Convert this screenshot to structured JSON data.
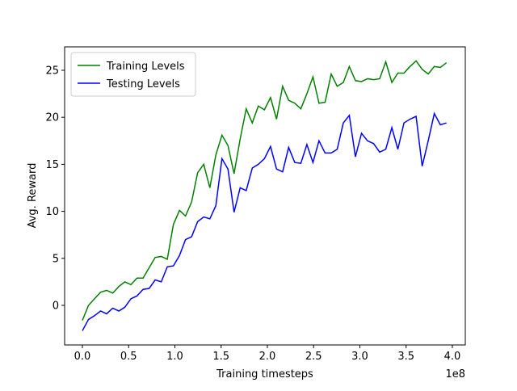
{
  "chart_data": {
    "type": "line",
    "xlabel": "Training timesteps",
    "ylabel": "Avg. Reward",
    "x_offset_label": "1e8",
    "x": [
      0,
      0.066,
      0.131,
      0.197,
      0.262,
      0.328,
      0.394,
      0.459,
      0.525,
      0.59,
      0.656,
      0.722,
      0.787,
      0.853,
      0.918,
      0.984,
      1.05,
      1.115,
      1.181,
      1.246,
      1.312,
      1.378,
      1.443,
      1.509,
      1.574,
      1.64,
      1.706,
      1.771,
      1.837,
      1.902,
      1.968,
      2.034,
      2.099,
      2.165,
      2.23,
      2.296,
      2.362,
      2.427,
      2.493,
      2.558,
      2.624,
      2.69,
      2.755,
      2.821,
      2.886,
      2.952,
      3.018,
      3.083,
      3.149,
      3.214,
      3.28,
      3.346,
      3.411,
      3.477,
      3.542,
      3.608,
      3.674,
      3.739,
      3.805,
      3.87,
      3.936
    ],
    "series": [
      {
        "name": "Training Levels",
        "color": "#008000",
        "values": [
          -1.6,
          0,
          0.7,
          1.4,
          1.6,
          1.3,
          2.0,
          2.5,
          2.2,
          2.9,
          2.9,
          4.0,
          5.1,
          5.2,
          4.9,
          8.6,
          10.1,
          9.5,
          11.0,
          14.1,
          15.0,
          12.5,
          16.0,
          18.1,
          17.0,
          14.0,
          17.7,
          20.9,
          19.4,
          21.2,
          20.8,
          22.1,
          19.8,
          23.3,
          21.8,
          21.5,
          20.9,
          22.5,
          24.3,
          21.5,
          21.6,
          24.6,
          23.3,
          23.7,
          25.4,
          23.9,
          23.8,
          24.1,
          24.0,
          24.1,
          25.9,
          23.7,
          24.7,
          24.7,
          25.4,
          26.0,
          25.1,
          24.6,
          25.4,
          25.3,
          25.8
        ]
      },
      {
        "name": "Testing Levels",
        "color": "#0000ff",
        "values": [
          -2.7,
          -1.5,
          -1.1,
          -0.6,
          -0.9,
          -0.3,
          -0.6,
          -0.2,
          0.7,
          1.0,
          1.7,
          1.8,
          2.7,
          2.5,
          4.1,
          4.2,
          5.3,
          7.0,
          7.3,
          8.9,
          9.4,
          9.2,
          10.6,
          15.6,
          14.5,
          9.9,
          12.5,
          12.2,
          14.6,
          15.0,
          15.6,
          16.9,
          14.5,
          14.2,
          16.8,
          15.2,
          15.1,
          17.1,
          15.2,
          17.5,
          16.2,
          16.2,
          16.6,
          19.4,
          20.2,
          15.8,
          18.3,
          17.5,
          17.2,
          16.3,
          16.6,
          18.9,
          16.6,
          19.4,
          19.8,
          20.1,
          14.8,
          17.5,
          20.4,
          19.2,
          19.4
        ]
      }
    ],
    "xlim": [
      -0.192,
      4.14
    ],
    "ylim": [
      -4.21,
      27.49
    ],
    "xticks": [
      {
        "value": 0,
        "label": "0.0"
      },
      {
        "value": 0.5,
        "label": "0.5"
      },
      {
        "value": 1,
        "label": "1.0"
      },
      {
        "value": 1.5,
        "label": "1.5"
      },
      {
        "value": 2,
        "label": "2.0"
      },
      {
        "value": 2.5,
        "label": "2.5"
      },
      {
        "value": 3,
        "label": "3.0"
      },
      {
        "value": 3.5,
        "label": "3.5"
      },
      {
        "value": 4,
        "label": "4.0"
      }
    ],
    "yticks": [
      0,
      5,
      10,
      15,
      20,
      25
    ],
    "legend": "upper left"
  }
}
